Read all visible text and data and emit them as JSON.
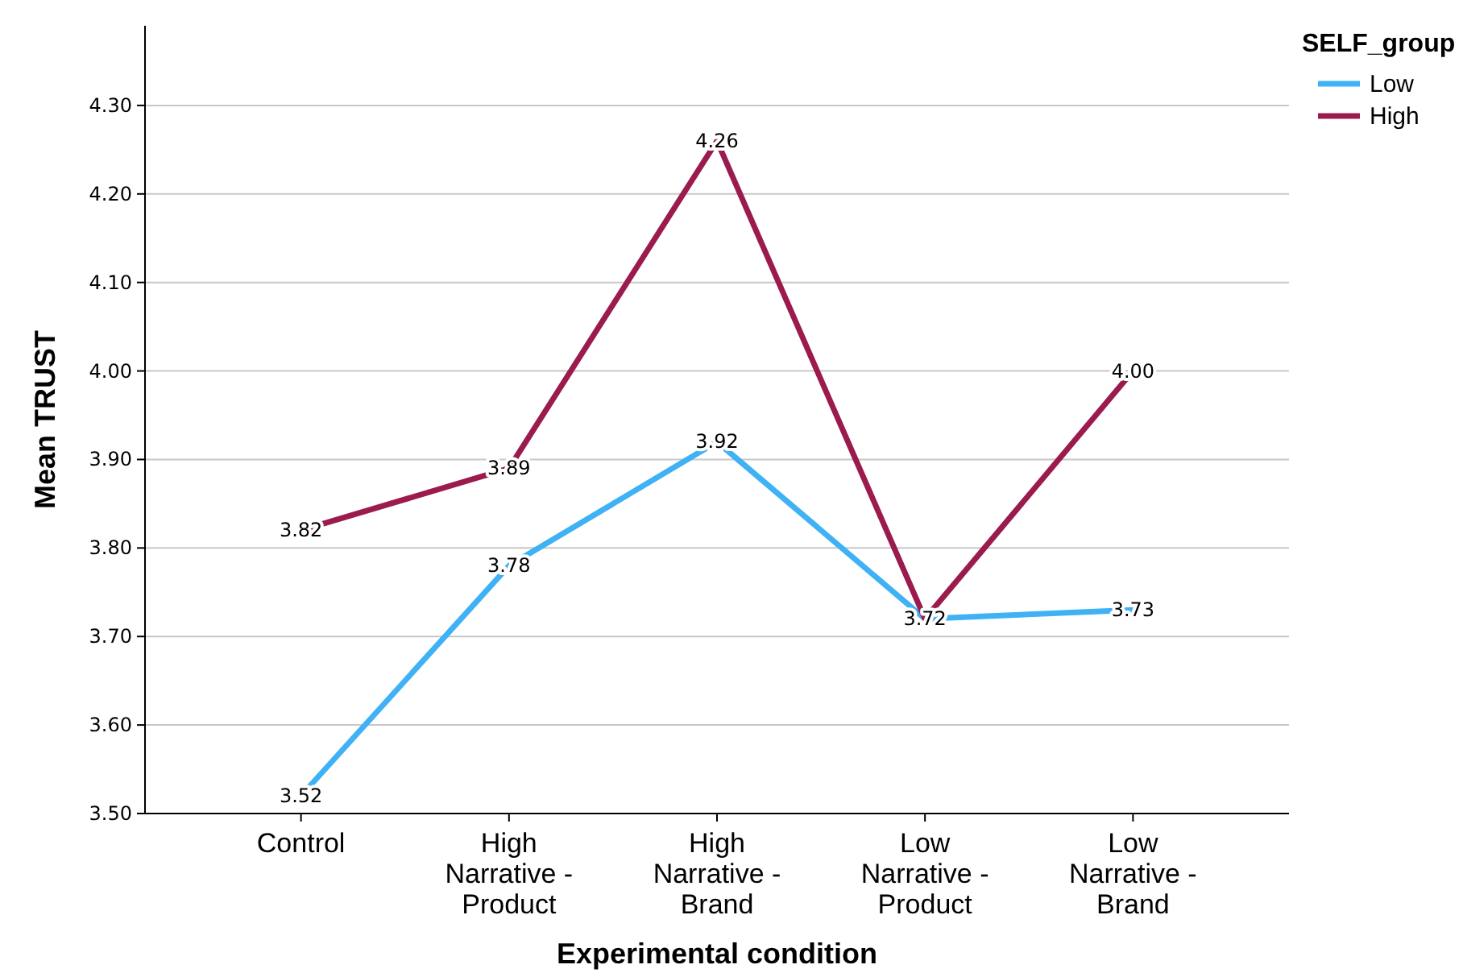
{
  "chart_data": {
    "type": "line",
    "xlabel": "Experimental condition",
    "ylabel": "Mean TRUST",
    "legend_title": "SELF_group",
    "legend": "top right",
    "grid": "y",
    "marker": "none",
    "line_style": "solid",
    "categories": [
      "Control",
      "High Narrative - Product",
      "High Narrative - Brand",
      "Low Narrative - Product",
      "Low Narrative - Brand"
    ],
    "ylim": [
      3.5,
      4.39
    ],
    "yticks": [
      {
        "value": 3.5,
        "label": "3.50"
      },
      {
        "value": 3.6,
        "label": "3.60"
      },
      {
        "value": 3.7,
        "label": "3.70"
      },
      {
        "value": 3.8,
        "label": "3.80"
      },
      {
        "value": 3.9,
        "label": "3.90"
      },
      {
        "value": 4.0,
        "label": "4.00"
      },
      {
        "value": 4.1,
        "label": "4.10"
      },
      {
        "value": 4.2,
        "label": "4.20"
      },
      {
        "value": 4.3,
        "label": "4.30"
      }
    ],
    "series": [
      {
        "name": "Low",
        "color": "#3fb1f5",
        "values": [
          3.52,
          3.78,
          3.92,
          3.72,
          3.73
        ],
        "value_labels": [
          "3.52",
          "3.78",
          "3.92",
          "3.72",
          "3.73"
        ]
      },
      {
        "name": "High",
        "color": "#9b1b4f",
        "values": [
          3.82,
          3.89,
          4.26,
          3.72,
          4.0
        ],
        "value_labels": [
          "3.82",
          "3.89",
          "4.26",
          null,
          "4.00"
        ]
      }
    ]
  }
}
